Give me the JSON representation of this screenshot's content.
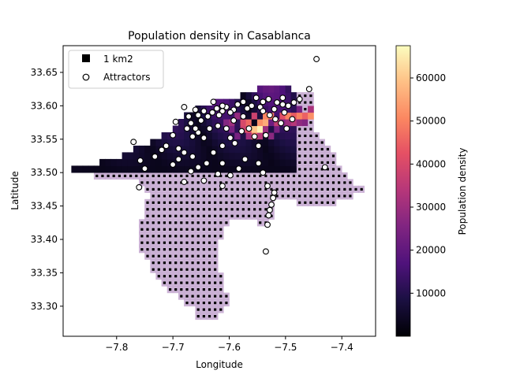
{
  "chart_data": {
    "type": "scatter",
    "title": "Population density in Casablanca",
    "xlabel": "Longitude",
    "ylabel": "Latitude",
    "xlim": [
      -7.895,
      -7.34
    ],
    "ylim": [
      33.255,
      33.69
    ],
    "xticks": [
      -7.8,
      -7.7,
      -7.6,
      -7.5,
      -7.4
    ],
    "xtick_labels": [
      "−7.8",
      "−7.7",
      "−7.6",
      "−7.5",
      "−7.4"
    ],
    "yticks": [
      33.3,
      33.35,
      33.4,
      33.45,
      33.5,
      33.55,
      33.6,
      33.65
    ],
    "ytick_labels": [
      "33.30",
      "33.35",
      "33.40",
      "33.45",
      "33.50",
      "33.55",
      "33.60",
      "33.65"
    ],
    "legend": {
      "position": "top-left",
      "entries": [
        {
          "label": "1 km2",
          "marker": "square"
        },
        {
          "label": "Attractors",
          "marker": "circle"
        }
      ]
    },
    "colorbar": {
      "label": "Population density",
      "colormap": "magma",
      "min": 0,
      "max": 67500,
      "ticks": [
        10000,
        20000,
        30000,
        40000,
        50000,
        60000
      ],
      "tick_labels": [
        "10000",
        "20000",
        "30000",
        "40000",
        "50000",
        "60000"
      ]
    },
    "high_density_cells": [
      {
        "x": -7.61,
        "y": 33.575,
        "value": 26000
      },
      {
        "x": -7.6,
        "y": 33.575,
        "value": 30000
      },
      {
        "x": -7.59,
        "y": 33.585,
        "value": 29000
      },
      {
        "x": -7.58,
        "y": 33.565,
        "value": 38000
      },
      {
        "x": -7.58,
        "y": 33.575,
        "value": 40000
      },
      {
        "x": -7.57,
        "y": 33.565,
        "value": 43000
      },
      {
        "x": -7.57,
        "y": 33.575,
        "value": 46000
      },
      {
        "x": -7.56,
        "y": 33.555,
        "value": 47000
      },
      {
        "x": -7.56,
        "y": 33.565,
        "value": 60000
      },
      {
        "x": -7.56,
        "y": 33.585,
        "value": 38000
      },
      {
        "x": -7.55,
        "y": 33.565,
        "value": 66000
      },
      {
        "x": -7.55,
        "y": 33.575,
        "value": 52000
      },
      {
        "x": -7.54,
        "y": 33.575,
        "value": 56000
      },
      {
        "x": -7.54,
        "y": 33.585,
        "value": 50000
      },
      {
        "x": -7.53,
        "y": 33.585,
        "value": 48000
      },
      {
        "x": -7.52,
        "y": 33.575,
        "value": 36000
      },
      {
        "x": -7.51,
        "y": 33.585,
        "value": 42000
      },
      {
        "x": -7.5,
        "y": 33.585,
        "value": 50000
      },
      {
        "x": -7.49,
        "y": 33.585,
        "value": 44000
      },
      {
        "x": -7.48,
        "y": 33.585,
        "value": 50000
      },
      {
        "x": -7.48,
        "y": 33.595,
        "value": 24000
      },
      {
        "x": -7.47,
        "y": 33.585,
        "value": 45000
      },
      {
        "x": -7.46,
        "y": 33.585,
        "value": 52000
      },
      {
        "x": -7.46,
        "y": 33.595,
        "value": 32000
      },
      {
        "x": -7.53,
        "y": 33.575,
        "value": 22000
      },
      {
        "x": -7.51,
        "y": 33.575,
        "value": 26000
      },
      {
        "x": -7.5,
        "y": 33.575,
        "value": 30000
      },
      {
        "x": -7.49,
        "y": 33.575,
        "value": 34000
      },
      {
        "x": -7.48,
        "y": 33.575,
        "value": 28000
      },
      {
        "x": -7.47,
        "y": 33.575,
        "value": 26000
      },
      {
        "x": -7.59,
        "y": 33.555,
        "value": 24000
      },
      {
        "x": -7.57,
        "y": 33.555,
        "value": 31000
      },
      {
        "x": -7.55,
        "y": 33.555,
        "value": 34000
      },
      {
        "x": -7.53,
        "y": 33.555,
        "value": 27000
      },
      {
        "x": -7.6,
        "y": 33.565,
        "value": 24000
      },
      {
        "x": -7.54,
        "y": 33.565,
        "value": 30000
      },
      {
        "x": -7.52,
        "y": 33.565,
        "value": 24000
      }
    ],
    "attractors": [
      [
        -7.445,
        33.67
      ],
      [
        -7.458,
        33.625
      ],
      [
        -7.475,
        33.61
      ],
      [
        -7.485,
        33.605
      ],
      [
        -7.495,
        33.6
      ],
      [
        -7.505,
        33.602
      ],
      [
        -7.515,
        33.605
      ],
      [
        -7.52,
        33.595
      ],
      [
        -7.505,
        33.612
      ],
      [
        -7.53,
        33.61
      ],
      [
        -7.54,
        33.606
      ],
      [
        -7.545,
        33.598
      ],
      [
        -7.552,
        33.612
      ],
      [
        -7.56,
        33.6
      ],
      [
        -7.568,
        33.596
      ],
      [
        -7.575,
        33.606
      ],
      [
        -7.585,
        33.602
      ],
      [
        -7.592,
        33.594
      ],
      [
        -7.598,
        33.59
      ],
      [
        -7.605,
        33.598
      ],
      [
        -7.612,
        33.592
      ],
      [
        -7.618,
        33.586
      ],
      [
        -7.622,
        33.596
      ],
      [
        -7.63,
        33.59
      ],
      [
        -7.638,
        33.584
      ],
      [
        -7.645,
        33.592
      ],
      [
        -7.65,
        33.578
      ],
      [
        -7.655,
        33.586
      ],
      [
        -7.66,
        33.594
      ],
      [
        -7.668,
        33.574
      ],
      [
        -7.672,
        33.584
      ],
      [
        -7.68,
        33.598
      ],
      [
        -7.695,
        33.576
      ],
      [
        -7.7,
        33.556
      ],
      [
        -7.712,
        33.54
      ],
      [
        -7.72,
        33.534
      ],
      [
        -7.732,
        33.524
      ],
      [
        -7.758,
        33.518
      ],
      [
        -7.77,
        33.546
      ],
      [
        -7.75,
        33.506
      ],
      [
        -7.7,
        33.512
      ],
      [
        -7.69,
        33.52
      ],
      [
        -7.68,
        33.53
      ],
      [
        -7.665,
        33.524
      ],
      [
        -7.655,
        33.56
      ],
      [
        -7.645,
        33.552
      ],
      [
        -7.635,
        33.566
      ],
      [
        -7.62,
        33.57
      ],
      [
        -7.605,
        33.566
      ],
      [
        -7.598,
        33.552
      ],
      [
        -7.59,
        33.544
      ],
      [
        -7.578,
        33.562
      ],
      [
        -7.565,
        33.566
      ],
      [
        -7.555,
        33.554
      ],
      [
        -7.548,
        33.54
      ],
      [
        -7.535,
        33.556
      ],
      [
        -7.528,
        33.586
      ],
      [
        -7.518,
        33.58
      ],
      [
        -7.508,
        33.574
      ],
      [
        -7.498,
        33.566
      ],
      [
        -7.488,
        33.58
      ],
      [
        -7.612,
        33.54
      ],
      [
        -7.628,
        33.53
      ],
      [
        -7.64,
        33.514
      ],
      [
        -7.655,
        33.508
      ],
      [
        -7.668,
        33.502
      ],
      [
        -7.68,
        33.486
      ],
      [
        -7.645,
        33.488
      ],
      [
        -7.62,
        33.498
      ],
      [
        -7.612,
        33.514
      ],
      [
        -7.598,
        33.496
      ],
      [
        -7.583,
        33.506
      ],
      [
        -7.572,
        33.52
      ],
      [
        -7.548,
        33.514
      ],
      [
        -7.54,
        33.5
      ],
      [
        -7.532,
        33.48
      ],
      [
        -7.52,
        33.47
      ],
      [
        -7.522,
        33.462
      ],
      [
        -7.525,
        33.452
      ],
      [
        -7.528,
        33.444
      ],
      [
        -7.53,
        33.436
      ],
      [
        -7.532,
        33.422
      ],
      [
        -7.612,
        33.48
      ],
      [
        -7.66,
        33.566
      ],
      [
        -7.665,
        33.554
      ],
      [
        -7.675,
        33.566
      ],
      [
        -7.69,
        33.536
      ],
      [
        -7.76,
        33.478
      ],
      [
        -7.43,
        33.508
      ],
      [
        -7.535,
        33.382
      ],
      [
        -7.54,
        33.592
      ],
      [
        -7.502,
        33.59
      ],
      [
        -7.575,
        33.584
      ],
      [
        -7.592,
        33.578
      ],
      [
        -7.628,
        33.606
      ],
      [
        -7.612,
        33.6
      ]
    ]
  }
}
